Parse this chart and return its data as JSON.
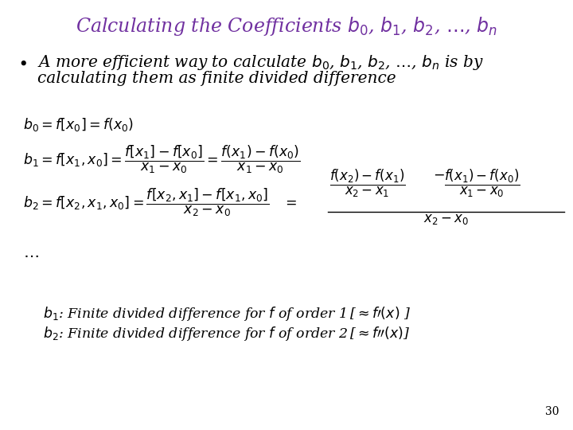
{
  "title_plain": "Calculating the Coefficients ",
  "title_math": "$b_0$, $b_1$, $b_2$, $\\ldots$, $b_n$",
  "title_color": "#7030A0",
  "bg_color": "#FFFFFF",
  "page_number": "30",
  "formula_color": "#000000",
  "title_fontsize": 17,
  "body_fontsize": 14.5,
  "formula_fontsize": 12.5
}
